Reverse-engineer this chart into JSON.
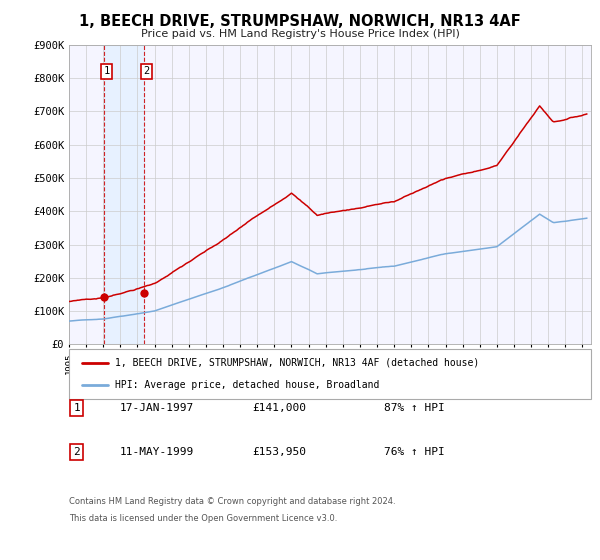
{
  "title": "1, BEECH DRIVE, STRUMPSHAW, NORWICH, NR13 4AF",
  "subtitle": "Price paid vs. HM Land Registry's House Price Index (HPI)",
  "red_legend": "1, BEECH DRIVE, STRUMPSHAW, NORWICH, NR13 4AF (detached house)",
  "blue_legend": "HPI: Average price, detached house, Broadland",
  "sale1_date": "17-JAN-1997",
  "sale1_price": 141000,
  "sale2_price": 153950,
  "sale2_date": "11-MAY-1999",
  "sale1_label": "87% ↑ HPI",
  "sale2_label": "76% ↑ HPI",
  "footer1": "Contains HM Land Registry data © Crown copyright and database right 2024.",
  "footer2": "This data is licensed under the Open Government Licence v3.0.",
  "red_color": "#cc0000",
  "blue_color": "#7aabda",
  "grid_color": "#cccccc",
  "shade_color": "#ddeeff",
  "ylim_max": 900000,
  "xlim_min": 1995.0,
  "xlim_max": 2025.5,
  "chart_bg": "#f5f5ff"
}
